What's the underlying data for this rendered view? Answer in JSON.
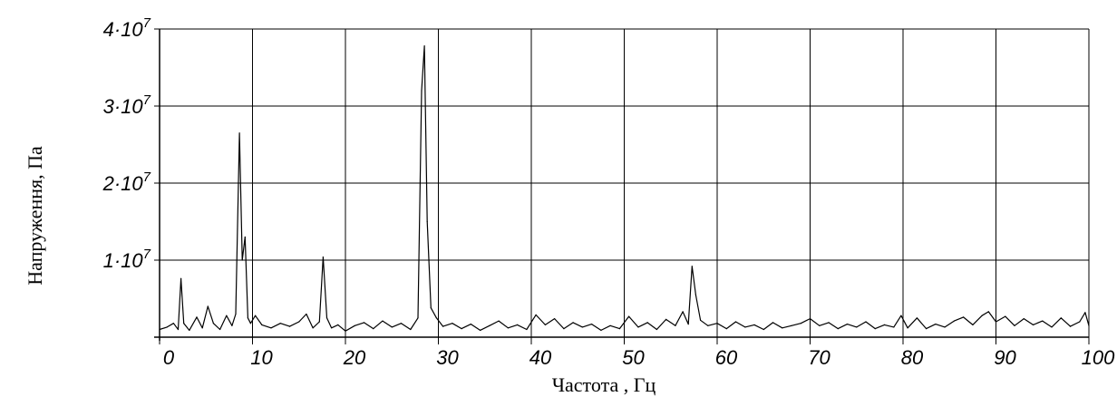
{
  "chart_data": {
    "type": "line",
    "title": "",
    "xlabel": "Частота , Гц",
    "ylabel": "Напруження, Па",
    "xlim": [
      0,
      100
    ],
    "ylim": [
      0,
      40000000
    ],
    "grid": true,
    "legend": "none",
    "line_color": "#000000",
    "x_ticks": [
      0,
      10,
      20,
      30,
      40,
      50,
      60,
      70,
      80,
      90,
      100
    ],
    "x_tick_labels": [
      "0",
      "10",
      "20",
      "30",
      "40",
      "50",
      "60",
      "70",
      "80",
      "90",
      "100"
    ],
    "y_ticks": [
      10000000,
      20000000,
      30000000,
      40000000
    ],
    "y_tick_labels": [
      {
        "mantissa": "1",
        "dot": "·",
        "base": "10",
        "exp": "7"
      },
      {
        "mantissa": "2",
        "dot": "·",
        "base": "10",
        "exp": "7"
      },
      {
        "mantissa": "3",
        "dot": "·",
        "base": "10",
        "exp": "7"
      },
      {
        "mantissa": "4",
        "dot": "·",
        "base": "10",
        "exp": "7"
      }
    ],
    "series": [
      {
        "x": [
          0,
          0.8,
          1.5,
          2.0,
          2.3,
          2.6,
          3.2,
          4.0,
          4.6,
          5.2,
          5.8,
          6.5,
          7.2,
          7.8,
          8.2,
          8.6,
          8.9,
          9.2,
          9.5,
          9.8,
          10.3,
          11.0,
          12.0,
          13.0,
          14.0,
          15.0,
          15.8,
          16.5,
          17.2,
          17.6,
          18.0,
          18.5,
          19.2,
          20.0,
          21.0,
          22.0,
          23.0,
          24.0,
          25.0,
          26.0,
          27.0,
          27.8,
          28.2,
          28.5,
          28.8,
          29.2,
          29.8,
          30.5,
          31.5,
          32.5,
          33.5,
          34.5,
          35.5,
          36.5,
          37.5,
          38.5,
          39.5,
          40.5,
          41.5,
          42.5,
          43.5,
          44.5,
          45.5,
          46.5,
          47.5,
          48.5,
          49.5,
          50.5,
          51.5,
          52.5,
          53.5,
          54.5,
          55.5,
          56.3,
          56.9,
          57.3,
          57.7,
          58.2,
          59.0,
          60.0,
          61.0,
          62.0,
          63.0,
          64.0,
          65.0,
          66.0,
          67.0,
          68.0,
          69.0,
          70.0,
          71.0,
          72.0,
          73.0,
          74.0,
          75.0,
          76.0,
          77.0,
          78.0,
          79.0,
          79.8,
          80.5,
          81.5,
          82.5,
          83.5,
          84.5,
          85.5,
          86.5,
          87.5,
          88.5,
          89.2,
          90.0,
          91.0,
          92.0,
          93.0,
          94.0,
          95.0,
          96.0,
          97.0,
          98.0,
          99.0,
          99.6,
          100
        ],
        "values": [
          1000000,
          1300000,
          1800000,
          1000000,
          7600000,
          1800000,
          900000,
          2600000,
          1200000,
          4000000,
          1800000,
          1000000,
          2800000,
          1500000,
          3000000,
          26500000,
          10000000,
          13000000,
          2500000,
          1800000,
          2800000,
          1600000,
          1200000,
          1800000,
          1400000,
          2000000,
          3000000,
          1200000,
          2000000,
          10400000,
          2500000,
          1200000,
          1600000,
          800000,
          1500000,
          1900000,
          1100000,
          2100000,
          1300000,
          1800000,
          1000000,
          2500000,
          32000000,
          37800000,
          15000000,
          3800000,
          2500000,
          1400000,
          1800000,
          1100000,
          1700000,
          900000,
          1500000,
          2100000,
          1200000,
          1600000,
          1000000,
          2900000,
          1600000,
          2400000,
          1100000,
          1900000,
          1300000,
          1700000,
          900000,
          1500000,
          1100000,
          2700000,
          1300000,
          1900000,
          1000000,
          2300000,
          1500000,
          3300000,
          1700000,
          9200000,
          5500000,
          2200000,
          1500000,
          1800000,
          1100000,
          2000000,
          1300000,
          1600000,
          1000000,
          1900000,
          1200000,
          1500000,
          1800000,
          2400000,
          1500000,
          1900000,
          1100000,
          1700000,
          1300000,
          2000000,
          1100000,
          1600000,
          1300000,
          2800000,
          1200000,
          2500000,
          1100000,
          1700000,
          1300000,
          2100000,
          2600000,
          1600000,
          2800000,
          3300000,
          2000000,
          2700000,
          1500000,
          2400000,
          1600000,
          2100000,
          1300000,
          2500000,
          1400000,
          2000000,
          3200000,
          1500000
        ]
      }
    ]
  }
}
